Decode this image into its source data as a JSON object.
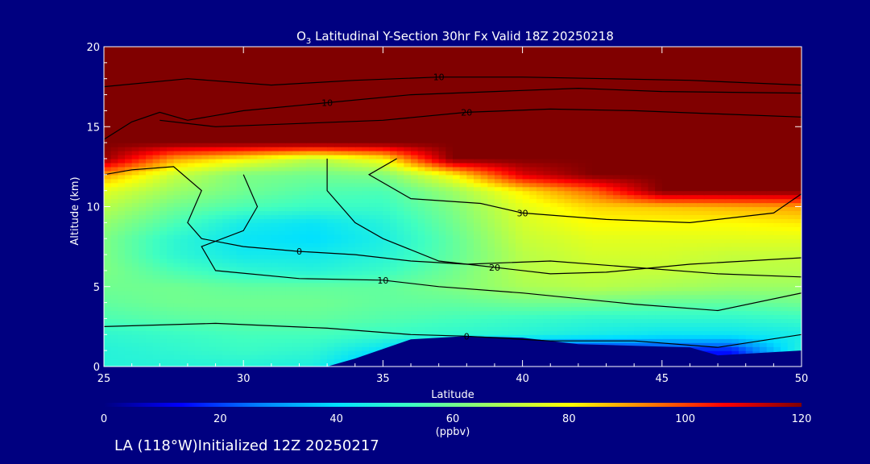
{
  "chart_data": {
    "type": "heatmap",
    "title_prefix": "O",
    "title_subscript": "3",
    "title_rest": " Latitudinal Y-Section 30hr  Fx Valid 18Z 20250218",
    "xlabel": "Latitude",
    "ylabel": "Altitude (km)",
    "xlim": [
      25,
      50
    ],
    "ylim": [
      0,
      20
    ],
    "xticks": [
      "25",
      "30",
      "35",
      "40",
      "45",
      "50"
    ],
    "yticks": [
      "0",
      "5",
      "10",
      "15",
      "20"
    ],
    "colorbar": {
      "label": "(ppbv)",
      "range": [
        0,
        120
      ],
      "ticks": [
        "0",
        "20",
        "40",
        "60",
        "80",
        "100",
        "120"
      ],
      "colormap": [
        "#000080",
        "#0000ff",
        "#0080ff",
        "#00e0ff",
        "#40ffc0",
        "#a0ff60",
        "#ffff00",
        "#ff8000",
        "#ff0000",
        "#800000"
      ]
    },
    "grid": false,
    "lat": [
      25,
      27.5,
      30,
      32.5,
      35,
      37.5,
      40,
      42.5,
      45,
      47.5,
      50
    ],
    "alt": [
      0,
      1,
      2,
      3,
      4,
      5,
      6,
      7,
      8,
      9,
      10,
      11,
      12,
      13,
      14,
      15,
      16,
      17,
      18,
      19,
      20
    ],
    "values": [
      [
        48,
        48,
        48,
        46,
        30,
        15,
        12,
        12,
        12,
        12,
        48
      ],
      [
        48,
        50,
        52,
        50,
        40,
        15,
        12,
        12,
        15,
        15,
        48
      ],
      [
        50,
        52,
        54,
        54,
        52,
        50,
        48,
        45,
        42,
        42,
        45
      ],
      [
        55,
        57,
        58,
        58,
        56,
        54,
        52,
        50,
        50,
        50,
        52
      ],
      [
        58,
        60,
        60,
        60,
        58,
        58,
        60,
        60,
        58,
        58,
        60
      ],
      [
        60,
        60,
        58,
        58,
        58,
        62,
        68,
        70,
        68,
        66,
        66
      ],
      [
        62,
        55,
        50,
        48,
        52,
        60,
        70,
        72,
        72,
        70,
        70
      ],
      [
        62,
        50,
        44,
        44,
        48,
        58,
        70,
        74,
        74,
        72,
        72
      ],
      [
        62,
        50,
        42,
        40,
        46,
        58,
        72,
        76,
        76,
        76,
        76
      ],
      [
        65,
        55,
        45,
        42,
        48,
        60,
        74,
        80,
        80,
        80,
        82
      ],
      [
        70,
        60,
        55,
        52,
        52,
        62,
        76,
        84,
        86,
        88,
        90
      ],
      [
        76,
        66,
        60,
        56,
        55,
        66,
        82,
        96,
        120,
        120,
        120
      ],
      [
        90,
        72,
        62,
        60,
        62,
        80,
        110,
        120,
        120,
        120,
        120
      ],
      [
        118,
        90,
        80,
        70,
        80,
        120,
        120,
        120,
        120,
        120,
        120
      ],
      [
        120,
        120,
        120,
        120,
        120,
        120,
        120,
        120,
        120,
        120,
        120
      ],
      [
        120,
        120,
        120,
        120,
        120,
        120,
        120,
        120,
        120,
        120,
        120
      ],
      [
        120,
        120,
        120,
        120,
        120,
        120,
        120,
        120,
        120,
        120,
        120
      ],
      [
        120,
        120,
        120,
        120,
        120,
        120,
        120,
        120,
        120,
        120,
        120
      ],
      [
        120,
        120,
        120,
        120,
        120,
        120,
        120,
        120,
        120,
        120,
        120
      ],
      [
        120,
        120,
        120,
        120,
        120,
        120,
        120,
        120,
        120,
        120,
        120
      ],
      [
        120,
        120,
        120,
        120,
        120,
        120,
        120,
        120,
        120,
        120,
        120
      ]
    ],
    "terrain": [
      [
        25,
        0
      ],
      [
        33,
        0
      ],
      [
        34,
        0.5
      ],
      [
        36,
        1.7
      ],
      [
        38,
        1.9
      ],
      [
        40,
        1.8
      ],
      [
        42,
        1.4
      ],
      [
        44,
        1.3
      ],
      [
        46,
        1.2
      ],
      [
        47,
        0.7
      ],
      [
        50,
        1.0
      ]
    ],
    "contours": [
      {
        "label": "10",
        "points": [
          [
            25,
            17.5
          ],
          [
            28,
            18.0
          ],
          [
            31,
            17.6
          ],
          [
            34,
            17.9
          ],
          [
            37,
            18.1
          ],
          [
            40,
            18.1
          ],
          [
            43,
            18.0
          ],
          [
            46,
            17.9
          ],
          [
            50,
            17.6
          ]
        ]
      },
      {
        "label": "10",
        "points": [
          [
            25,
            14.2
          ],
          [
            26,
            15.3
          ],
          [
            27,
            15.9
          ],
          [
            28,
            15.4
          ],
          [
            30,
            16.0
          ],
          [
            33,
            16.5
          ],
          [
            36,
            17.0
          ],
          [
            39,
            17.2
          ],
          [
            42,
            17.4
          ],
          [
            45,
            17.2
          ],
          [
            50,
            17.1
          ]
        ]
      },
      {
        "label": "20",
        "points": [
          [
            27,
            15.4
          ],
          [
            29,
            15.0
          ],
          [
            32,
            15.2
          ],
          [
            35,
            15.4
          ],
          [
            38,
            15.9
          ],
          [
            41,
            16.1
          ],
          [
            44,
            16.0
          ],
          [
            47,
            15.8
          ],
          [
            50,
            15.6
          ]
        ]
      },
      {
        "label": "0",
        "points": [
          [
            25,
            12.0
          ],
          [
            26,
            12.3
          ],
          [
            27.5,
            12.5
          ],
          [
            28.5,
            11.0
          ],
          [
            28.0,
            9.0
          ],
          [
            28.5,
            8.0
          ],
          [
            30,
            7.5
          ],
          [
            32,
            7.2
          ],
          [
            34,
            7.0
          ],
          [
            36,
            6.6
          ],
          [
            38,
            6.4
          ],
          [
            41,
            6.6
          ],
          [
            44,
            6.2
          ],
          [
            47,
            5.8
          ],
          [
            50,
            5.6
          ]
        ]
      },
      {
        "label": "10",
        "points": [
          [
            30,
            12.0
          ],
          [
            30.5,
            10.0
          ],
          [
            30,
            8.5
          ],
          [
            28.5,
            7.5
          ],
          [
            29,
            6.0
          ],
          [
            32,
            5.5
          ],
          [
            35,
            5.4
          ],
          [
            37,
            5.0
          ],
          [
            40,
            4.6
          ],
          [
            44,
            3.9
          ],
          [
            47,
            3.5
          ],
          [
            50,
            4.6
          ]
        ]
      },
      {
        "label": "20",
        "points": [
          [
            33,
            13.0
          ],
          [
            33,
            11.0
          ],
          [
            34,
            9.0
          ],
          [
            35,
            8.0
          ],
          [
            37,
            6.6
          ],
          [
            39,
            6.2
          ],
          [
            41,
            5.8
          ],
          [
            43,
            5.9
          ],
          [
            46,
            6.4
          ],
          [
            50,
            6.8
          ]
        ]
      },
      {
        "label": "30",
        "points": [
          [
            35.5,
            13.0
          ],
          [
            34.5,
            12.0
          ],
          [
            36,
            10.5
          ],
          [
            38.5,
            10.2
          ],
          [
            40,
            9.6
          ],
          [
            43,
            9.2
          ],
          [
            46,
            9.0
          ],
          [
            49,
            9.6
          ],
          [
            50,
            10.8
          ]
        ]
      },
      {
        "label": "0",
        "points": [
          [
            25,
            2.5
          ],
          [
            29,
            2.7
          ],
          [
            33,
            2.4
          ],
          [
            36,
            2.0
          ],
          [
            38,
            1.9
          ],
          [
            41,
            1.6
          ],
          [
            44,
            1.6
          ],
          [
            47,
            1.2
          ],
          [
            50,
            2.0
          ]
        ]
      }
    ]
  },
  "footer": "LA (118°W)Initialized 12Z 20250217"
}
